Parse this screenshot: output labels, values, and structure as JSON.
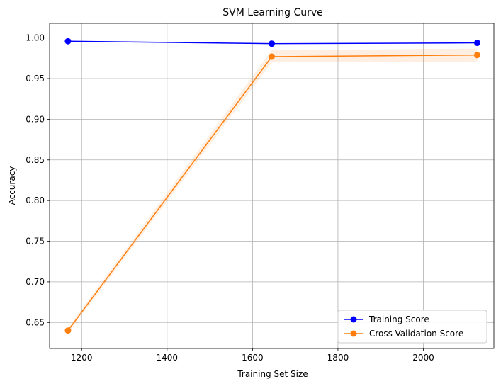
{
  "chart_data": {
    "type": "line",
    "title": "SVM Learning Curve",
    "xlabel": "Training Set Size",
    "ylabel": "Accuracy",
    "xlim": [
      1125,
      2165
    ],
    "ylim": [
      0.618,
      1.018
    ],
    "xticks": [
      1200,
      1400,
      1600,
      1800,
      2000
    ],
    "yticks": [
      0.65,
      0.7,
      0.75,
      0.8,
      0.85,
      0.9,
      0.95,
      1.0
    ],
    "xtick_labels": [
      "1200",
      "1400",
      "1600",
      "1800",
      "2000"
    ],
    "ytick_labels": [
      "0.65",
      "0.70",
      "0.75",
      "0.80",
      "0.85",
      "0.90",
      "0.95",
      "1.00"
    ],
    "grid": true,
    "legend_position": "bottom-right",
    "x": [
      1168,
      1645,
      2126
    ],
    "series": [
      {
        "name": "Training Score",
        "color": "#0000ff",
        "values": [
          0.996,
          0.993,
          0.994
        ],
        "band": [
          [
            0.996,
            0.996
          ],
          [
            0.993,
            0.993
          ],
          [
            0.994,
            0.994
          ]
        ]
      },
      {
        "name": "Cross-Validation Score",
        "color": "#ff7f0e",
        "values": [
          0.64,
          0.977,
          0.979
        ],
        "band": [
          [
            0.637,
            0.643
          ],
          [
            0.97,
            0.985
          ],
          [
            0.971,
            0.987
          ]
        ]
      }
    ]
  }
}
